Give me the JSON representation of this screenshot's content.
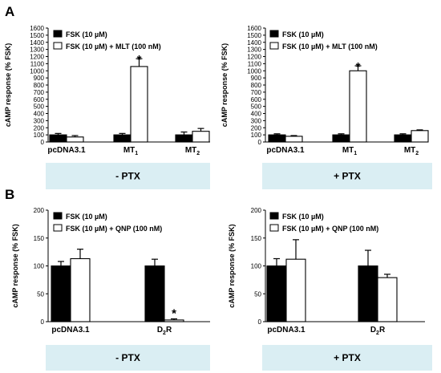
{
  "panels": {
    "a_letter": "A",
    "b_letter": "B"
  },
  "colors": {
    "fsk": "#000000",
    "treatment": "#ffffff",
    "band": "#daeef3"
  },
  "chart_data": [
    {
      "id": "A-left",
      "type": "bar",
      "ylabel": "cAMP response (% FSK)",
      "ylim": [
        0,
        1600
      ],
      "yticks": [
        "0",
        "100",
        "200",
        "300",
        "400",
        "500",
        "600",
        "700",
        "800",
        "900",
        "1000",
        "1100",
        "1200",
        "1300",
        "1400",
        "1500",
        "1600"
      ],
      "categories": [
        "pcDNA3.1",
        "MT1",
        "MT2"
      ],
      "series": [
        {
          "name": "FSK (10 µM)",
          "values": [
            100,
            100,
            100
          ],
          "errors": [
            20,
            20,
            40
          ]
        },
        {
          "name": "FSK (10 µM) + MLT (100 nM)",
          "values": [
            70,
            1060,
            150
          ],
          "errors": [
            20,
            110,
            40
          ]
        }
      ],
      "annotations": [
        {
          "text": "*",
          "category": 1,
          "series": 1
        }
      ],
      "band_label": "- PTX"
    },
    {
      "id": "A-right",
      "type": "bar",
      "ylabel": "cAMP response (% FSK)",
      "ylim": [
        0,
        1600
      ],
      "yticks": [
        "0",
        "100",
        "200",
        "300",
        "400",
        "500",
        "600",
        "700",
        "800",
        "900",
        "1000",
        "1100",
        "1200",
        "1300",
        "1400",
        "1500",
        "1600"
      ],
      "categories": [
        "pcDNA3.1",
        "MT1",
        "MT2"
      ],
      "series": [
        {
          "name": "FSK (10 µM)",
          "values": [
            100,
            100,
            100
          ],
          "errors": [
            15,
            15,
            15
          ]
        },
        {
          "name": "FSK (10 µM) + MLT (100 nM)",
          "values": [
            80,
            1000,
            160
          ],
          "errors": [
            10,
            70,
            10
          ]
        }
      ],
      "annotations": [
        {
          "text": "*",
          "category": 1,
          "series": 1
        }
      ],
      "band_label": "+ PTX"
    },
    {
      "id": "B-left",
      "type": "bar",
      "ylabel": "cAMP response (% FSK)",
      "ylim": [
        0,
        200
      ],
      "yticks": [
        "0",
        "50",
        "100",
        "150",
        "200"
      ],
      "categories": [
        "pcDNA3.1",
        "D2R"
      ],
      "series": [
        {
          "name": "FSK (10 µM)",
          "values": [
            100,
            100
          ],
          "errors": [
            8,
            12
          ]
        },
        {
          "name": "FSK (10 µM) + QNP (100 nM)",
          "values": [
            113,
            3
          ],
          "errors": [
            17,
            2
          ]
        }
      ],
      "annotations": [
        {
          "text": "*",
          "category": 1,
          "series": 1
        }
      ],
      "band_label": "- PTX"
    },
    {
      "id": "B-right",
      "type": "bar",
      "ylabel": "cAMP response (% FSK)",
      "ylim": [
        0,
        200
      ],
      "yticks": [
        "0",
        "50",
        "100",
        "150",
        "200"
      ],
      "categories": [
        "pcDNA3.1",
        "D2R"
      ],
      "series": [
        {
          "name": "FSK (10 µM)",
          "values": [
            100,
            100
          ],
          "errors": [
            13,
            28
          ]
        },
        {
          "name": "FSK (10 µM) + QNP (100 nM)",
          "values": [
            112,
            79
          ],
          "errors": [
            35,
            6
          ]
        }
      ],
      "annotations": [],
      "band_label": "+ PTX"
    }
  ]
}
